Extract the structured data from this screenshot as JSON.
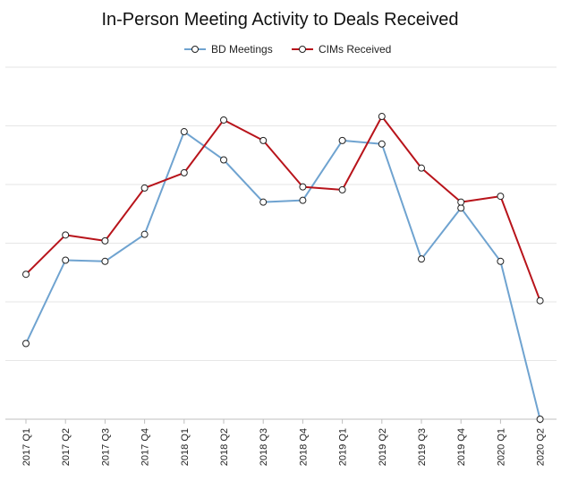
{
  "chart_data": {
    "type": "line",
    "title": "In-Person Meeting Activity to Deals Received",
    "xlabel": "",
    "ylabel": "",
    "categories": [
      "2017 Q1",
      "2017 Q2",
      "2017 Q3",
      "2017 Q4",
      "2018 Q1",
      "2018 Q2",
      "2018 Q3",
      "2018 Q4",
      "2019 Q1",
      "2019 Q2",
      "2019 Q3",
      "2019 Q4",
      "2020 Q1",
      "2020 Q2"
    ],
    "ylim": [
      0,
      6
    ],
    "yticks_labeled": false,
    "grid": true,
    "legend_position": "top-center",
    "series": [
      {
        "name": "BD Meetings",
        "color": "#6fa3d0",
        "values": [
          1.29,
          2.71,
          2.69,
          3.15,
          4.9,
          4.42,
          3.7,
          3.73,
          4.75,
          4.69,
          2.73,
          3.6,
          2.69,
          0.0
        ]
      },
      {
        "name": "CIMs Received",
        "color": "#b8141b",
        "values": [
          2.47,
          3.14,
          3.04,
          3.94,
          4.2,
          5.1,
          4.75,
          3.96,
          3.91,
          5.16,
          4.28,
          3.7,
          3.8,
          2.02
        ]
      }
    ]
  }
}
